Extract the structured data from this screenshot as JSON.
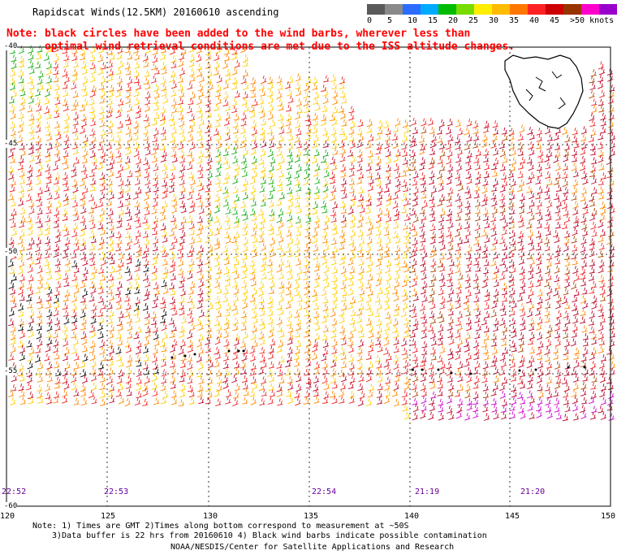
{
  "title": "Rapidscat Winds(12.5KM) 20160610 ascending",
  "note_line1": "Note: black circles have been added to the wind barbs, wherever less than",
  "note_line2": "      optimal wind retrieval conditions are met due to the ISS altitude changes.",
  "legend": {
    "colors": [
      "#5a5a5a",
      "#8a8a8a",
      "#2b6cff",
      "#00aaff",
      "#00bb00",
      "#77dd00",
      "#ffee00",
      "#ffbb00",
      "#ff7700",
      "#ff2222",
      "#cc0000",
      "#993300",
      "#ff00cc",
      "#9900cc",
      "#330088"
    ],
    "labels": [
      "0",
      "5",
      "10",
      "15",
      "20",
      "25",
      "30",
      "35",
      "40",
      "45",
      ">50 knots"
    ]
  },
  "pass_times": [
    "22:52",
    "22:53",
    "22:54",
    "21:19",
    "21:20"
  ],
  "lon_labels": [
    "120",
    "125",
    "130",
    "135",
    "140",
    "145",
    "150"
  ],
  "lat_labels": [
    "-40",
    "-45",
    "-50",
    "-55",
    "-60"
  ],
  "footer": {
    "line1": "Note: 1) Times are GMT 2)Times along bottom correspond to measurement at ~50S",
    "line2": "3)Data buffer is 22 hrs from 20160610 4) Black wind barbs indicate possible contamination",
    "line3": "NOAA/NESDIS/Center for Satellite Applications and Research"
  }
}
